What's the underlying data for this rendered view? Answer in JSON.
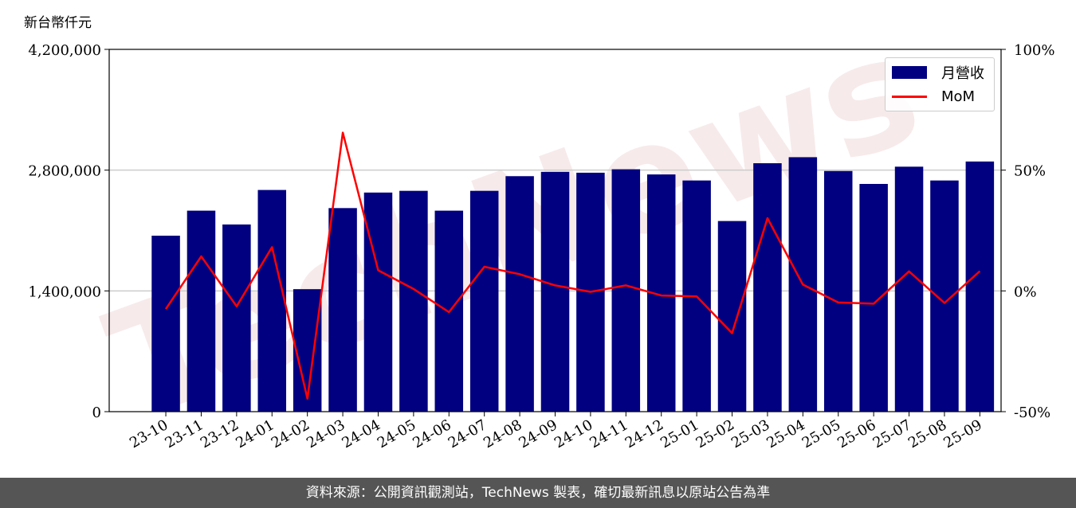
{
  "unit_label": "新台幣仟元",
  "footer_text": "資料來源：公開資訊觀測站，TechNews 製表，確切最新訊息以原站公告為準",
  "watermark": "TechNews",
  "colors": {
    "bar": "#000080",
    "line": "#ff0000",
    "grid": "#cccccc",
    "watermark": "#f2d9d9"
  },
  "chart_data": {
    "type": "bar",
    "title": "",
    "xlabel": "",
    "ylabel": "新台幣仟元",
    "categories": [
      "23-10",
      "23-11",
      "23-12",
      "24-01",
      "24-02",
      "24-03",
      "24-04",
      "24-05",
      "24-06",
      "24-07",
      "24-08",
      "24-09",
      "24-10",
      "24-11",
      "24-12",
      "25-01",
      "25-02",
      "25-03",
      "25-04",
      "25-05",
      "25-06",
      "25-07",
      "25-08",
      "25-09"
    ],
    "series": [
      {
        "name": "月營收",
        "type": "bar",
        "axis": "left",
        "values": [
          2040000,
          2330000,
          2170000,
          2570000,
          1420000,
          2360000,
          2540000,
          2560000,
          2330000,
          2560000,
          2730000,
          2780000,
          2770000,
          2810000,
          2750000,
          2680000,
          2210000,
          2880000,
          2950000,
          2790000,
          2640000,
          2840000,
          2680000,
          2900000
        ]
      },
      {
        "name": "MoM",
        "type": "line",
        "axis": "right",
        "values": [
          -7.5,
          14.3,
          -6.4,
          18.1,
          -44.6,
          65.5,
          8.5,
          0.8,
          -8.8,
          10.0,
          6.9,
          2.3,
          -0.4,
          2.3,
          -1.9,
          -2.3,
          -17.5,
          30.1,
          2.6,
          -4.8,
          -5.3,
          8.1,
          -5.0,
          8.2
        ]
      }
    ],
    "ylim": [
      0,
      4200000
    ],
    "yticks": [
      "0",
      "1,400,000",
      "2,800,000",
      "4,200,000"
    ],
    "ytick_values": [
      0,
      1400000,
      2800000,
      4200000
    ],
    "y2lim": [
      -50,
      100
    ],
    "y2ticks": [
      "-50%",
      "0%",
      "50%",
      "100%"
    ],
    "y2tick_values": [
      -50,
      0,
      50,
      100
    ],
    "grid": "horizontal",
    "legend_position": "top-right"
  }
}
